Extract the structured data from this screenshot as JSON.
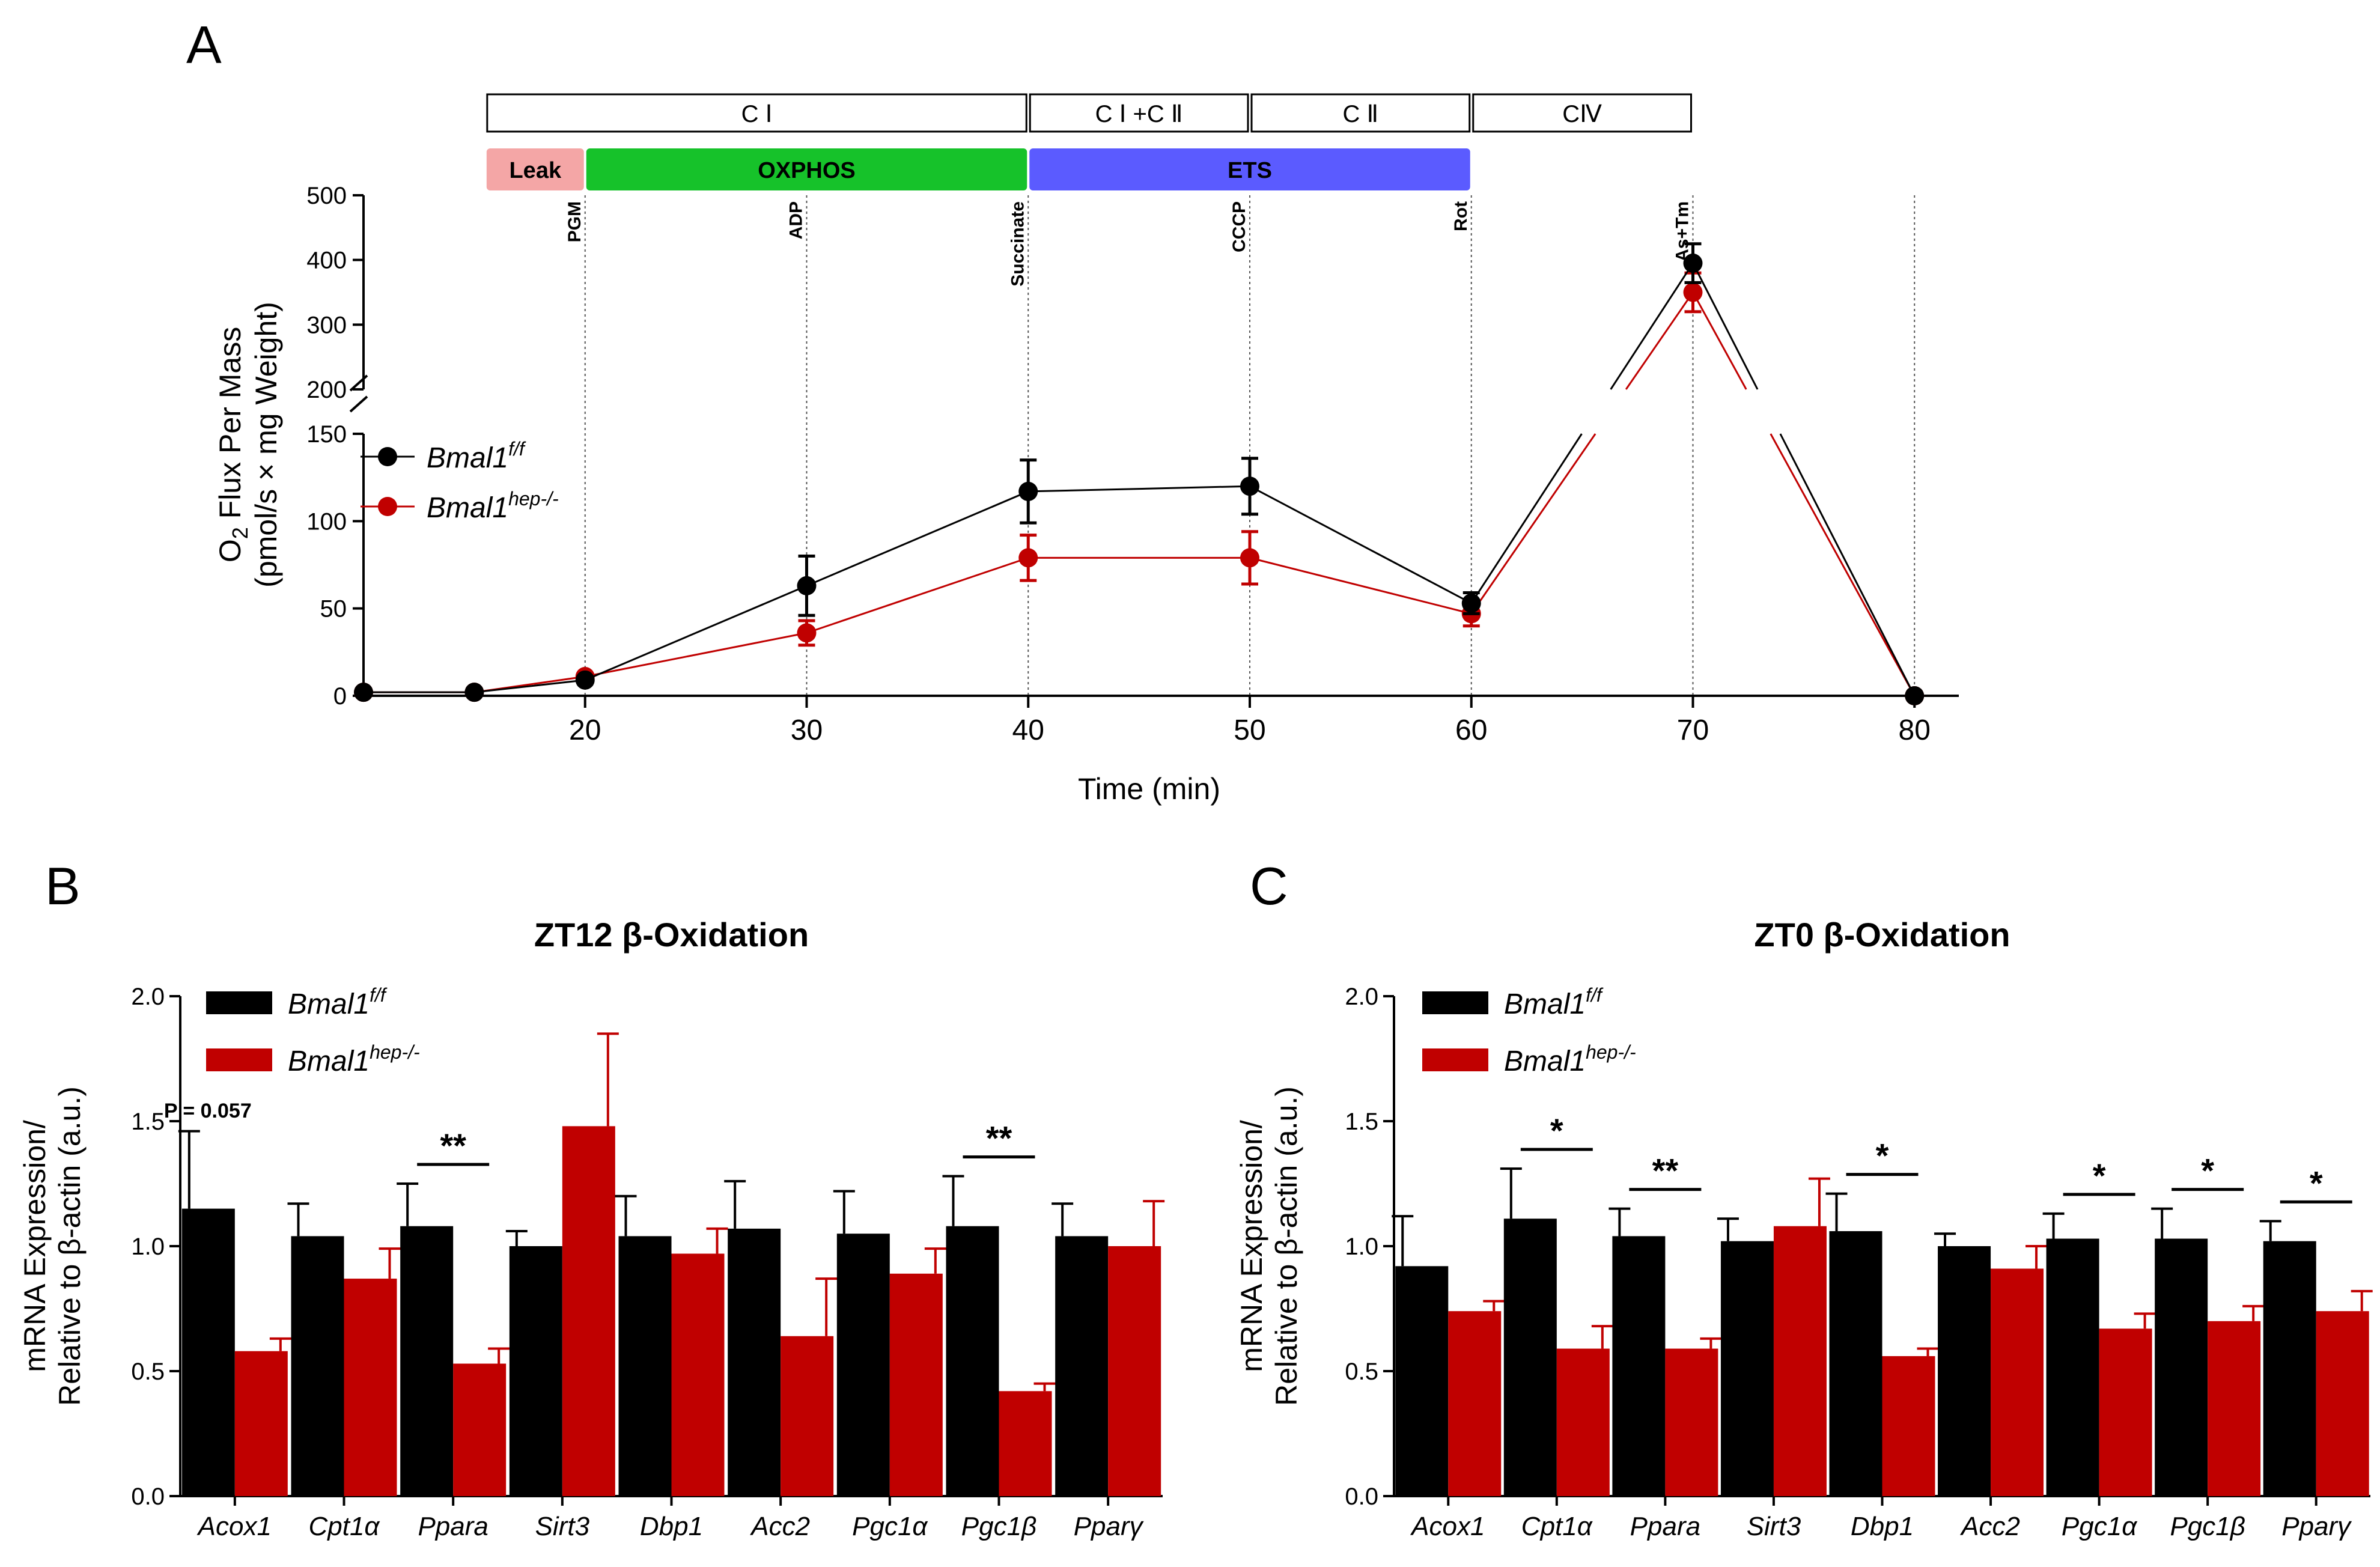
{
  "panel_letters": {
    "a": "A",
    "b": "B",
    "c": "C"
  },
  "colors": {
    "control": "#000000",
    "knockout": "#c00000",
    "leak": "#f4a6a6",
    "oxphos": "#16c22a",
    "ets": "#5b5bff"
  },
  "legend": {
    "control": "Bmal1",
    "control_sup": "f/f",
    "knockout": "Bmal1",
    "knockout_sup": "hep-/-"
  },
  "chart_data": [
    {
      "id": "A",
      "type": "line",
      "xlabel": "Time (min)",
      "ylabel_line1": "O",
      "ylabel_sub": "2",
      "ylabel_rest": " Flux Per Mass",
      "ylabel_line2": "(pmol/s × mg Weight)",
      "x_ticks": [
        "20",
        "30",
        "40",
        "50",
        "60",
        "70",
        "80"
      ],
      "y_ticks_lower": [
        "0",
        "50",
        "100",
        "150"
      ],
      "y_ticks_upper": [
        "200",
        "300",
        "400",
        "500"
      ],
      "ylim_lower": [
        0,
        150
      ],
      "ylim_upper": [
        200,
        500
      ],
      "xlim": [
        10,
        82
      ],
      "complexes": [
        {
          "label": "C Ⅰ",
          "from": 15.5,
          "to": 40
        },
        {
          "label": "C Ⅰ +C Ⅱ",
          "from": 40,
          "to": 50
        },
        {
          "label": "C Ⅱ",
          "from": 50,
          "to": 60
        },
        {
          "label": "CⅣ",
          "from": 60,
          "to": 70
        }
      ],
      "phases": [
        {
          "label": "Leak",
          "from": 15.5,
          "to": 20,
          "color": "#f4a6a6"
        },
        {
          "label": "OXPHOS",
          "from": 20,
          "to": 40,
          "color": "#16c22a"
        },
        {
          "label": "ETS",
          "from": 40,
          "to": 60,
          "color": "#5b5bff"
        }
      ],
      "injections": [
        {
          "label": "PGM",
          "x": 20
        },
        {
          "label": "ADP",
          "x": 30
        },
        {
          "label": "Succinate",
          "x": 40
        },
        {
          "label": "CCCP",
          "x": 50
        },
        {
          "label": "Rot",
          "x": 60
        },
        {
          "label": "As+Tm",
          "x": 70
        },
        {
          "label": "",
          "x": 80
        }
      ],
      "series": [
        {
          "name": "Bmal1 f/f",
          "color": "#000000",
          "x": [
            10,
            15,
            20,
            30,
            40,
            50,
            60,
            70,
            80
          ],
          "values": [
            2,
            2,
            9,
            63,
            117,
            120,
            53,
            395,
            0
          ],
          "err": [
            1,
            1,
            2,
            17,
            18,
            16,
            6,
            30,
            1
          ]
        },
        {
          "name": "Bmal1 hep-/-",
          "color": "#c00000",
          "x": [
            10,
            15,
            20,
            30,
            40,
            50,
            60,
            70,
            80
          ],
          "values": [
            2,
            2,
            11,
            36,
            79,
            79,
            47,
            350,
            0
          ],
          "err": [
            1,
            1,
            2,
            7,
            13,
            15,
            7,
            30,
            1
          ]
        }
      ]
    },
    {
      "id": "B",
      "type": "bar",
      "title": "ZT12 β-Oxidation",
      "ylabel_line1": "mRNA Expression/",
      "ylabel_line2": "Relative to β-actin (a.u.)",
      "ylim": [
        0,
        2.0
      ],
      "y_ticks": [
        "0.0",
        "0.5",
        "1.0",
        "1.5",
        "2.0"
      ],
      "categories": [
        "Acox1",
        "Cpt1α",
        "Ppara",
        "Sirt3",
        "Dbp1",
        "Acc2",
        "Pgc1α",
        "Pgc1β",
        "Pparγ"
      ],
      "series": [
        {
          "name": "Bmal1 f/f",
          "color": "#000000",
          "values": [
            1.15,
            1.04,
            1.08,
            1.0,
            1.04,
            1.07,
            1.05,
            1.08,
            1.04
          ],
          "err": [
            0.31,
            0.13,
            0.17,
            0.06,
            0.16,
            0.19,
            0.17,
            0.2,
            0.13
          ]
        },
        {
          "name": "Bmal1 hep-/-",
          "color": "#c00000",
          "values": [
            0.58,
            0.87,
            0.53,
            1.48,
            0.97,
            0.64,
            0.89,
            0.42,
            1.0
          ],
          "err": [
            0.05,
            0.12,
            0.06,
            0.37,
            0.1,
            0.23,
            0.1,
            0.03,
            0.18
          ]
        }
      ],
      "annotations": [
        {
          "index": 0,
          "text": "P = 0.057",
          "kind": "pvalue"
        },
        {
          "index": 2,
          "text": "**",
          "kind": "sig"
        },
        {
          "index": 7,
          "text": "**",
          "kind": "sig"
        }
      ]
    },
    {
      "id": "C",
      "type": "bar",
      "title": "ZT0 β-Oxidation",
      "ylabel_line1": "mRNA Expression/",
      "ylabel_line2": "Relative to β-actin (a.u.)",
      "ylim": [
        0,
        2.0
      ],
      "y_ticks": [
        "0.0",
        "0.5",
        "1.0",
        "1.5",
        "2.0"
      ],
      "categories": [
        "Acox1",
        "Cpt1α",
        "Ppara",
        "Sirt3",
        "Dbp1",
        "Acc2",
        "Pgc1α",
        "Pgc1β",
        "Pparγ"
      ],
      "series": [
        {
          "name": "Bmal1 f/f",
          "color": "#000000",
          "values": [
            0.92,
            1.11,
            1.04,
            1.02,
            1.06,
            1.0,
            1.03,
            1.03,
            1.02
          ],
          "err": [
            0.2,
            0.2,
            0.11,
            0.09,
            0.15,
            0.05,
            0.1,
            0.12,
            0.08
          ]
        },
        {
          "name": "Bmal1 hep-/-",
          "color": "#c00000",
          "values": [
            0.74,
            0.59,
            0.59,
            1.08,
            0.56,
            0.91,
            0.67,
            0.7,
            0.74
          ],
          "err": [
            0.04,
            0.09,
            0.04,
            0.19,
            0.03,
            0.09,
            0.06,
            0.06,
            0.08
          ]
        }
      ],
      "annotations": [
        {
          "index": 1,
          "text": "*",
          "kind": "sig"
        },
        {
          "index": 2,
          "text": "**",
          "kind": "sig"
        },
        {
          "index": 4,
          "text": "*",
          "kind": "sig"
        },
        {
          "index": 6,
          "text": "*",
          "kind": "sig"
        },
        {
          "index": 7,
          "text": "*",
          "kind": "sig"
        },
        {
          "index": 8,
          "text": "*",
          "kind": "sig"
        }
      ]
    }
  ]
}
